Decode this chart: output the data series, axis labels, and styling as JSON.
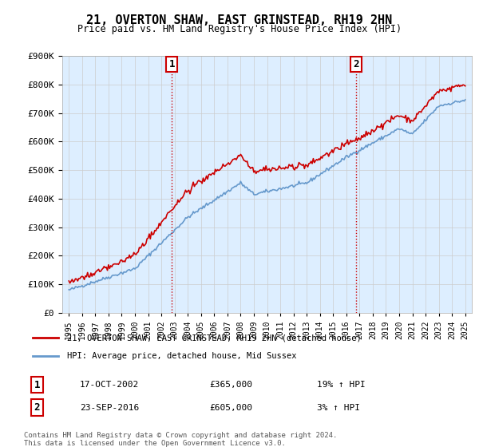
{
  "title": "21, OVERTON SHAW, EAST GRINSTEAD, RH19 2HN",
  "subtitle": "Price paid vs. HM Land Registry's House Price Index (HPI)",
  "ylim": [
    0,
    900000
  ],
  "yticks": [
    0,
    100000,
    200000,
    300000,
    400000,
    500000,
    600000,
    700000,
    800000,
    900000
  ],
  "ytick_labels": [
    "£0",
    "£100K",
    "£200K",
    "£300K",
    "£400K",
    "£500K",
    "£600K",
    "£700K",
    "£800K",
    "£900K"
  ],
  "price_paid_color": "#cc0000",
  "hpi_color": "#6699cc",
  "vline_color": "#cc0000",
  "sale1_year": 2002.8,
  "sale1_price": 365000,
  "sale1_label": "1",
  "sale1_date": "17-OCT-2002",
  "sale1_hpi_pct": "19% ↑ HPI",
  "sale2_year": 2016.73,
  "sale2_price": 605000,
  "sale2_label": "2",
  "sale2_date": "23-SEP-2016",
  "sale2_hpi_pct": "3% ↑ HPI",
  "legend_entry1": "21, OVERTON SHAW, EAST GRINSTEAD, RH19 2HN (detached house)",
  "legend_entry2": "HPI: Average price, detached house, Mid Sussex",
  "footer": "Contains HM Land Registry data © Crown copyright and database right 2024.\nThis data is licensed under the Open Government Licence v3.0.",
  "background_color": "#ddeeff",
  "plot_bg_color": "#ffffff",
  "grid_color": "#cccccc"
}
